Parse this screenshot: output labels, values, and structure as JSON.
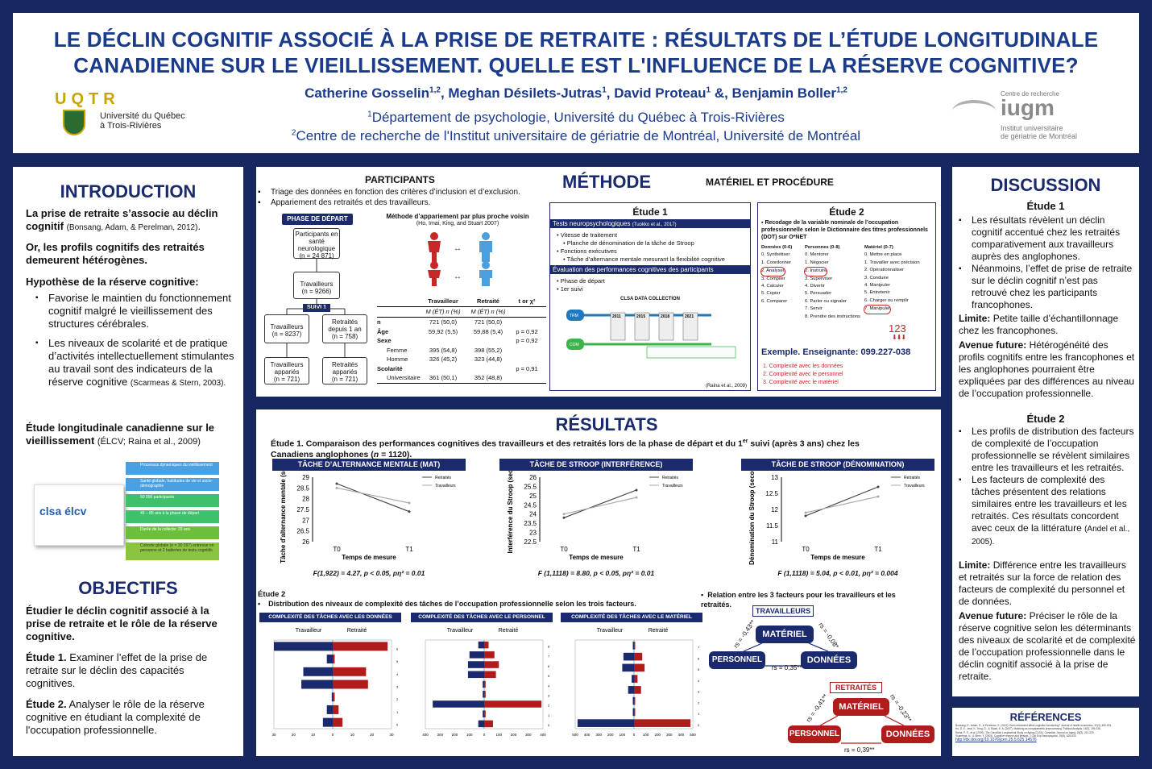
{
  "header": {
    "title_line1": "LE DÉCLIN COGNITIF ASSOCIÉ À LA PRISE DE RETRAITE : RÉSULTATS DE L’ÉTUDE LONGITUDINALE",
    "title_line2": "CANADIENNE SUR LE VIEILLISSEMENT. QUELLE EST L'INFLUENCE DE LA RÉSERVE COGNITIVE?",
    "authors": "Catherine Gosselin1,2, Meghan Désilets-Jutras1, David Proteau1 &, Benjamin Boller1,2",
    "affil1": "1Département de psychologie, Université du Québec à Trois-Rivières",
    "affil2": "2Centre de recherche de l'Institut universitaire de gériatrie de Montréal, Université de Montréal",
    "uqtr_logo": "UQTR",
    "uqtr_sub1": "Université du Québec",
    "uqtr_sub2": "à Trois-Rivières",
    "iugm_top": "Centre de recherche",
    "iugm_logo": "iugm",
    "iugm_sub1": "Institut universitaire",
    "iugm_sub2": "de gériatrie de Montréal"
  },
  "intro": {
    "heading": "INTRODUCTION",
    "p1_bold": "La prise de retraite s’associe au déclin cognitif",
    "p1_cite": "(Bonsang, Adam, & Perelman, 2012)",
    "p2": "Or, les profils cognitifs des retraités demeurent hétérogènes.",
    "p3": "Hypothèse de la réserve cognitive:",
    "b1": "Favorise le maintien du fonctionnement cognitif malgré le vieillissement des structures cérébrales.",
    "b2": "Les niveaux de scolarité et de pratique d’activités intellectuellement stimulantes au travail sont des indicateurs de la réserve cognitive",
    "b2_cite": "(Scarmeas & Stern, 2003).",
    "p4_bold": "Étude longitudinale canadienne sur le vieillissement",
    "p4_rest": "(ÉLCV; Raina et al., 2009)",
    "clsa_logo": "clsa élcv",
    "clsa_items": [
      "Processus dynamiques du vieillissement",
      "Santé globale, habitudes de vie et socio-démographie",
      "50 000 participants",
      "45 – 85 ans à la phase de départ",
      "Durée de la collecte: 20 ans",
      "Cohorte globale (n = 30 097) entrevue en personne et 2 batteries de tests cognitifs"
    ]
  },
  "objectifs": {
    "heading": "OBJECTIFS",
    "p1": "Étudier le déclin cognitif associé à la prise de retraite et le rôle de la réserve cognitive.",
    "e1_label": "Étude 1.",
    "e1": "Examiner l’effet de la prise de retraite sur le déclin des capacités cognitives.",
    "e2_label": "Étude 2.",
    "e2": "Analyser le rôle de la réserve cognitive en étudiant la complexité de l'occupation professionnelle."
  },
  "methode": {
    "heading": "MÉTHODE",
    "participants_h": "PARTICIPANTS",
    "part_b1": "Triage des données en fonction des critères d’inclusion et d’exclusion.",
    "part_b2": "Appariement des retraités et des travailleurs.",
    "phase_depart": "PHASE DE DÉPART",
    "suivi1": "SUIVI 1",
    "flow": [
      "Participants en santé neurologique",
      "(n = 24 871)",
      "Travailleurs",
      "(n = 9266)",
      "Travailleurs",
      "(n = 8237)",
      "Retraités depuis 1 an",
      "(n = 758)",
      "Travailleurs appariés",
      "(n = 721)",
      "Retraités appariés",
      "(n = 721)"
    ],
    "match_title": "Méthode d’appariement par plus proche voisin",
    "match_cite": "(Ho, Imai, King, and Stuart 2007)",
    "table_headers": [
      "",
      "Travailleur",
      "Retraité",
      "t or χ²"
    ],
    "table_subheaders": [
      "",
      "M (ÉT) n (%)",
      "M (ÉT) n (%)",
      ""
    ],
    "table_rows": [
      [
        "n",
        "721 (50,0)",
        "721 (50,0)",
        ""
      ],
      [
        "Âge",
        "59,92 (5,5)",
        "59,88 (5,4)",
        "p = 0,92"
      ],
      [
        "Sexe",
        "",
        "",
        "p = 0,92"
      ],
      [
        "Femme",
        "395 (54,8)",
        "398 (55,2)",
        ""
      ],
      [
        "Homme",
        "326 (45,2)",
        "323 (44,8)",
        ""
      ],
      [
        "Scolarité",
        "",
        "",
        "p = 0,91"
      ],
      [
        "Universitaire",
        "361 (50,1)",
        "352 (48,8)",
        ""
      ]
    ],
    "materiel_h": "MATÉRIEL ET PROCÉDURE",
    "etude1_h": "Étude 1",
    "tests_bar": "Tests neuropsychologiques",
    "tests_cite": "(Tuokko et al., 2017)",
    "e1_list": [
      "Vitesse de traitement",
      "Planche de dénomination de la tâche de Stroop",
      "Fonctions exécutives",
      "Tâche d’alternance mentale mesurant la flexibilité cognitive"
    ],
    "eval_bar": "Évaluation des performances cognitives des participants",
    "e1_list2": [
      "Phase de départ",
      "1er suivi"
    ],
    "clsa_coll": "CLSA DATA COLLECTION",
    "years": [
      "2011",
      "2015",
      "2018",
      "2021"
    ],
    "raina": "(Raina et al., 2009)",
    "etude2_h": "Étude 2",
    "e2_bullet": "Recodage de la variable nominale de l’occupation professionnelle selon le Dictionnaire des titres professionnels (DOT) sur O*NET",
    "cols": [
      {
        "h": "Données (0-6)",
        "items": [
          "0. Synthétiser",
          "1. Coordonner",
          "2. Analyser",
          "3. Compiler",
          "4. Calculer",
          "5. Copier",
          "6. Comparer"
        ]
      },
      {
        "h": "Personnes (0-8)",
        "items": [
          "0. Mentorer",
          "1. Négocier",
          "2. Instruire",
          "3. Superviser",
          "4. Divertir",
          "5. Persuader",
          "6. Parler ou signaler",
          "7. Servir",
          "8. Prendre des instructions"
        ]
      },
      {
        "h": "Matériel (0-7)",
        "items": [
          "0. Mettre en place",
          "1. Travailler avec précision",
          "2. Opérationnaliser",
          "3. Conduire",
          "4. Manipuler",
          "5. Entretenir",
          "6. Charger ou remplir",
          "7. Manipuler"
        ]
      }
    ],
    "code_num": "123",
    "example": "Exemple. Enseignante: 099.227-038",
    "ex_list": [
      "1. Complexité avec les données",
      "2. Complexité avec le personnel",
      "3. Complexité avec le matériel"
    ]
  },
  "resultats": {
    "heading": "RÉSULTATS",
    "e1_text": "Étude 1. Comparaison des performances cognitives des travailleurs et des retraités lors de la phase de départ et du 1er suivi (après 3 ans) chez les Canadiens anglophones (n = 1120).",
    "charts": [
      {
        "title": "TÂCHE D’ALTERNANCE MENTALE (MAT)",
        "ylabel": "Tâche d'alternance mentale (score)",
        "stat": "F(1,922) = 4.27, p < 0.05, pη² = 0.01"
      },
      {
        "title": "TÂCHE DE STROOP  (INTERFÉRENCE)",
        "ylabel": "Interférence du Stroop (sec.)",
        "stat": "F (1,1118) = 8.80, p < 0.05, pη² = 0.01"
      },
      {
        "title": "TÂCHE DE STROOP  (DÉNOMINATION)",
        "ylabel": "Dénomination du Stroop (secondes)",
        "stat": "F (1,1118) = 5.04, p < 0.01, pη² = 0.004"
      }
    ],
    "xlabel": "Temps de mesure",
    "legend": [
      "Retraités",
      "Travailleurs"
    ],
    "e2_label": "Étude 2",
    "e2_bullet": "Distribution des niveaux de complexité des tâches de l’occupation professionnelle selon les trois facteurs.",
    "bars": [
      {
        "title": "COMPLEXITÉ DES TÂCHES AVEC  LES DONNÉES"
      },
      {
        "title": "COMPLEXITÉ DES TÂCHES AVEC LE PERSONNEL"
      },
      {
        "title": "COMPLEXITÉ DES TÂCHES AVEC LE  MATÉRIEL"
      }
    ],
    "bar_legend": [
      "Travailleur",
      "Retraité"
    ],
    "relation": "Relation entre les 3 facteurs pour les travailleurs et les retraités.",
    "trav": "TRAVAILLEURS",
    "retr": "RETRAITÉS",
    "nodes": [
      "MATÉRIEL",
      "PERSONNEL",
      "DONNÉES"
    ],
    "coef_t": [
      "rs = -0,43**",
      "rs = -0,08*",
      "rs = 0,35**"
    ],
    "coef_r": [
      "rs = -0,41**",
      "rs = -0,23**",
      "rs = 0,39**"
    ]
  },
  "discussion": {
    "heading": "DISCUSSION",
    "e1_h": "Étude 1",
    "e1_b": [
      "Les résultats révèlent un déclin cognitif accentué chez les retraités comparativement aux travailleurs auprès des anglophones.",
      "Néanmoins, l’effet de prise de retraite sur le déclin cognitif n’est pas retrouvé chez les participants francophones."
    ],
    "lim1_label": "Limite:",
    "lim1": "Petite taille d’échantillonnage chez les francophones.",
    "av1_label": "Avenue future:",
    "av1": "Hétérogénéité des profils cognitifs entre les francophones et les anglophones pourraient être expliquées par des différences au niveau de l’occupation professionnelle.",
    "e2_h": "Étude 2",
    "e2_b": [
      "Les profils de distribution des facteurs de complexité de l’occupation professionnelle se révèlent similaires entre les travailleurs et les retraités.",
      "Les facteurs de complexité des tâches présentent des relations similaires entre les travailleurs et les retraités. Ces résultats concordent avec ceux de la littérature"
    ],
    "e2_cite": "(Andel et al., 2005).",
    "lim2_label": "Limite:",
    "lim2": "Différence entre les travailleurs et retraités sur la force de relation des facteurs de complexité du personnel et de données.",
    "av2_label": "Avenue future:",
    "av2": "Préciser le rôle de la réserve cognitive selon les déterminants des niveaux de scolarité et de complexité de l’occupation professionnelle dans le déclin cognitif associé à la prise de retraite.",
    "ref_h": "RÉFÉRENCES",
    "refs": [
      "Bonsang, E., Adam, S., & Perelman, S. (2012). Does retirement affect cognitive functioning? Journal of health economics, 31(3), 490-501.",
      "Ho, D. E., Imai, K., King, G., & Stuart, E. A. (2007). Matching as nonparametric preprocessing. Political Analysis, 15(3), 199-236.",
      "Raina, P. S., et al. (2009). The Canadian Longitudinal Study on Aging (CLSA). Canadian Journal on Aging, 28(3), 221-229.",
      "Scarmeas, N., & Stern, Y. (2003). Cognitive reserve and lifestyle. J Clin Exp Neuropsychol, 25(5), 625-633.",
      "http://dx.doi.org/10.1076/jcen.25.5.625.14576"
    ]
  },
  "chart_data": [
    {
      "type": "line",
      "title": "TÂCHE D’ALTERNANCE MENTALE (MAT)",
      "xlabel": "Temps de mesure",
      "ylabel": "Tâche d'alternance mentale (score)",
      "categories": [
        "T0",
        "T1"
      ],
      "ylim": [
        26,
        29
      ],
      "yticks": [
        "29",
        "28.5",
        "28",
        "27.5",
        "27",
        "26.5",
        "26"
      ],
      "series": [
        {
          "name": "Retraités",
          "values": [
            28.7,
            27.4
          ]
        },
        {
          "name": "Travailleurs",
          "values": [
            28.5,
            27.8
          ]
        }
      ]
    },
    {
      "type": "line",
      "title": "TÂCHE DE STROOP  (INTERFÉRENCE)",
      "xlabel": "Temps de mesure",
      "ylabel": "Interférence du Stroop (sec.)",
      "categories": [
        "T0",
        "T1"
      ],
      "ylim": [
        22.5,
        26
      ],
      "yticks": [
        "26",
        "25.5",
        "25",
        "24.5",
        "24",
        "23.5",
        "23",
        "22.5"
      ],
      "series": [
        {
          "name": "Retraités",
          "values": [
            23.8,
            25.3
          ]
        },
        {
          "name": "Travailleurs",
          "values": [
            24.0,
            24.9
          ]
        }
      ]
    },
    {
      "type": "line",
      "title": "TÂCHE DE STROOP  (DÉNOMINATION)",
      "xlabel": "Temps de mesure",
      "ylabel": "Dénomination du Stroop (secondes)",
      "categories": [
        "T0",
        "T1"
      ],
      "ylim": [
        11,
        13
      ],
      "yticks": [
        "13",
        "12.5",
        "12",
        "11.5",
        "11"
      ],
      "series": [
        {
          "name": "Retraités",
          "values": [
            11.8,
            12.7
          ]
        },
        {
          "name": "Travailleurs",
          "values": [
            11.9,
            12.4
          ]
        }
      ]
    },
    {
      "type": "bar",
      "title": "COMPLEXITÉ DES TÂCHES AVEC  LES DONNÉES",
      "categories": [
        "0",
        "1",
        "2",
        "3",
        "4",
        "5",
        "6"
      ],
      "xticks": [
        "30",
        "20",
        "10",
        "0",
        "10",
        "20",
        "30"
      ],
      "xlim": [
        -30,
        30
      ],
      "series": [
        {
          "name": "Travailleur",
          "values": [
            5,
            3,
            0.5,
            16,
            15,
            3,
            30
          ]
        },
        {
          "name": "Retraité",
          "values": [
            5,
            3,
            1,
            18,
            17,
            1,
            28
          ]
        }
      ]
    },
    {
      "type": "bar",
      "title": "COMPLEXITÉ DES TÂCHES AVEC LE PERSONNEL",
      "categories": [
        "0",
        "1",
        "2",
        "3",
        "4",
        "5",
        "6",
        "7",
        "8"
      ],
      "xticks": [
        "400",
        "300",
        "200",
        "100",
        "0",
        "100",
        "200",
        "300",
        "400"
      ],
      "xlim": [
        -400,
        400
      ],
      "series": [
        {
          "name": "Travailleur",
          "values": [
            40,
            10,
            350,
            10,
            10,
            110,
            110,
            100,
            40
          ]
        },
        {
          "name": "Retraité",
          "values": [
            60,
            10,
            390,
            10,
            10,
            80,
            100,
            70,
            30
          ]
        }
      ]
    },
    {
      "type": "bar",
      "title": "COMPLEXITÉ DES TÂCHES AVEC LE  MATÉRIEL",
      "categories": [
        "0",
        "1",
        "2",
        "3",
        "4",
        "5",
        "6",
        "7"
      ],
      "xticks": [
        "500",
        "400",
        "300",
        "200",
        "100",
        "0",
        "100",
        "200",
        "300",
        "400",
        "500"
      ],
      "xlim": [
        -500,
        500
      ],
      "series": [
        {
          "name": "Travailleur",
          "values": [
            480,
            10,
            10,
            50,
            20,
            100,
            90,
            10
          ]
        },
        {
          "name": "Retraité",
          "values": [
            480,
            10,
            10,
            60,
            30,
            90,
            70,
            10
          ]
        }
      ]
    }
  ],
  "colors": {
    "navy": "#1a2a6c",
    "red": "#b01c1c",
    "blue": "#1e73c8",
    "bg": "#15275e"
  }
}
